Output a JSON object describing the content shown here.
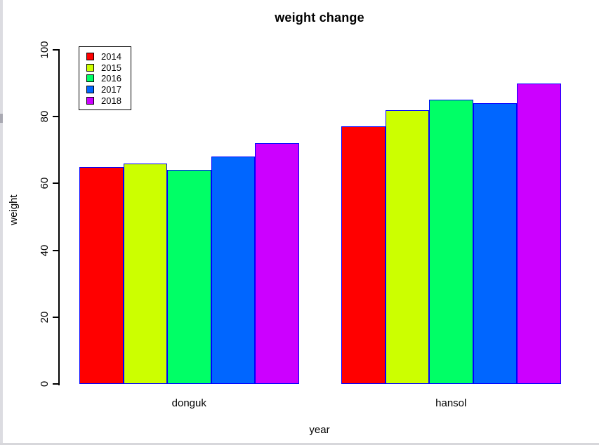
{
  "window": {
    "left_edge_color": "#dcdce1",
    "bottom_edge_color": "#d7d7db",
    "background_color": "#ffffff"
  },
  "chart_data": {
    "type": "bar",
    "title": "weight change",
    "xlabel": "year",
    "ylabel": "weight",
    "categories": [
      "donguk",
      "hansol"
    ],
    "series": [
      {
        "name": "2014",
        "color": "#FF0000",
        "values": [
          65,
          77
        ]
      },
      {
        "name": "2015",
        "color": "#CCFF00",
        "values": [
          66,
          82
        ]
      },
      {
        "name": "2016",
        "color": "#00FF66",
        "values": [
          64,
          85
        ]
      },
      {
        "name": "2017",
        "color": "#0066FF",
        "values": [
          68,
          84
        ]
      },
      {
        "name": "2018",
        "color": "#CC00FF",
        "values": [
          72,
          90
        ]
      }
    ],
    "ylim": [
      0,
      100
    ],
    "yticks": [
      0,
      20,
      40,
      60,
      80,
      100
    ],
    "bar_border_color": "#0000FF",
    "axis_color": "#000000",
    "legend_position": "top-left",
    "legend_border_color": "#000000",
    "grid": false
  }
}
